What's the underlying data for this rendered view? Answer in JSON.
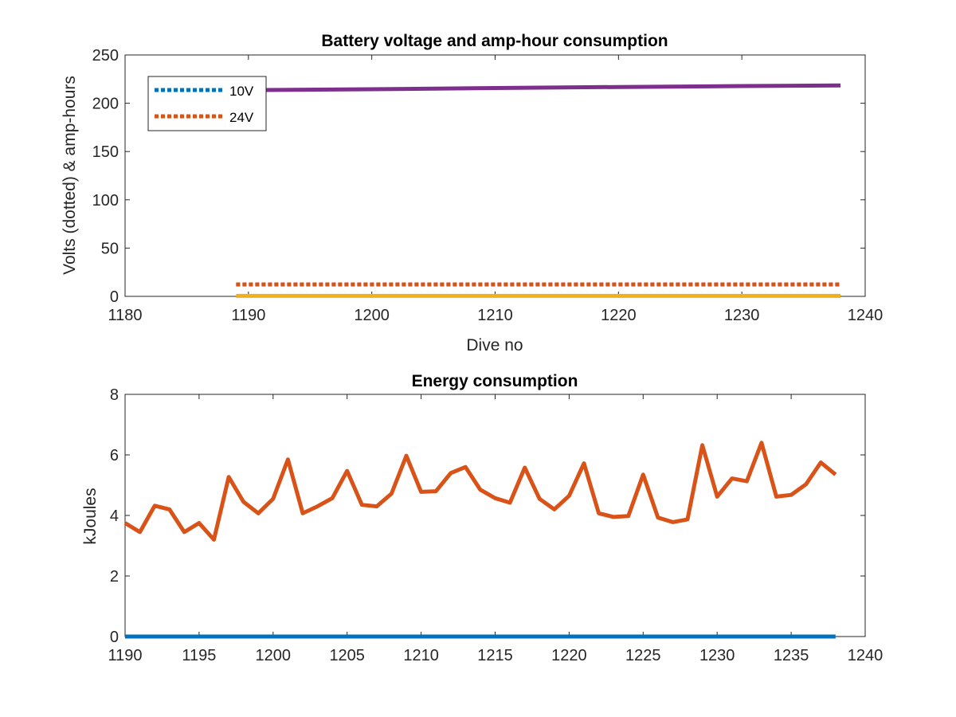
{
  "colors": {
    "blue": "#0072bd",
    "orange": "#d95319",
    "yellow": "#edb120",
    "purple": "#7e2f8e",
    "axis": "#262626"
  },
  "chart_data": [
    {
      "type": "line",
      "title": "Battery voltage and amp-hour consumption",
      "xlabel": "Dive no",
      "ylabel": "Volts (dotted) & amp-hours",
      "xlim": [
        1180,
        1240
      ],
      "ylim": [
        0,
        250
      ],
      "xticks": [
        1180,
        1190,
        1200,
        1210,
        1220,
        1230,
        1240
      ],
      "yticks": [
        0,
        50,
        100,
        150,
        200,
        250
      ],
      "grid": false,
      "legend_position": "top-left",
      "legend": [
        "10V",
        "24V"
      ],
      "series": [
        {
          "name": "10V",
          "style": "dotted",
          "color": "#0072bd",
          "x": [
            1189,
            1238
          ],
          "y": [
            12.2,
            12.2
          ]
        },
        {
          "name": "24V",
          "style": "dotted",
          "color": "#d95319",
          "x": [
            1189,
            1238
          ],
          "y": [
            12.6,
            12.6
          ]
        },
        {
          "style": "solid",
          "color": "#edb120",
          "x": [
            1189,
            1238
          ],
          "y": [
            0.5,
            0.5
          ]
        },
        {
          "style": "solid",
          "color": "#7e2f8e",
          "x": [
            1189,
            1200,
            1210,
            1220,
            1230,
            1238
          ],
          "y": [
            213.5,
            214.5,
            215.8,
            216.8,
            217.8,
            218.5
          ]
        }
      ]
    },
    {
      "type": "line",
      "title": "Energy consumption",
      "xlabel": "",
      "ylabel": "kJoules",
      "xlim": [
        1190,
        1240
      ],
      "ylim": [
        0,
        8
      ],
      "xticks": [
        1190,
        1195,
        1200,
        1205,
        1210,
        1215,
        1220,
        1225,
        1230,
        1235,
        1240
      ],
      "yticks": [
        0,
        2,
        4,
        6,
        8
      ],
      "grid": false,
      "series": [
        {
          "style": "solid",
          "color": "#d95319",
          "x": [
            1190,
            1191,
            1192,
            1193,
            1194,
            1195,
            1196,
            1197,
            1198,
            1199,
            1200,
            1201,
            1202,
            1203,
            1204,
            1205,
            1206,
            1207,
            1208,
            1209,
            1210,
            1211,
            1212,
            1213,
            1214,
            1215,
            1216,
            1217,
            1218,
            1219,
            1220,
            1221,
            1222,
            1223,
            1224,
            1225,
            1226,
            1227,
            1228,
            1229,
            1230,
            1231,
            1232,
            1233,
            1234,
            1235,
            1236,
            1237,
            1238
          ],
          "y": [
            3.75,
            3.45,
            4.32,
            4.2,
            3.45,
            3.75,
            3.2,
            5.27,
            4.45,
            4.07,
            4.55,
            5.85,
            4.07,
            4.3,
            4.57,
            5.47,
            4.35,
            4.3,
            4.72,
            5.97,
            4.78,
            4.8,
            5.4,
            5.6,
            4.85,
            4.57,
            4.42,
            5.58,
            4.55,
            4.2,
            4.65,
            5.72,
            4.07,
            3.95,
            3.98,
            5.35,
            3.93,
            3.78,
            3.87,
            6.32,
            4.62,
            5.22,
            5.13,
            6.4,
            4.62,
            4.68,
            5.03,
            5.75,
            5.35
          ]
        },
        {
          "style": "solid",
          "color": "#0072bd",
          "x": [
            1190,
            1238
          ],
          "y": [
            0,
            0
          ]
        }
      ]
    }
  ]
}
